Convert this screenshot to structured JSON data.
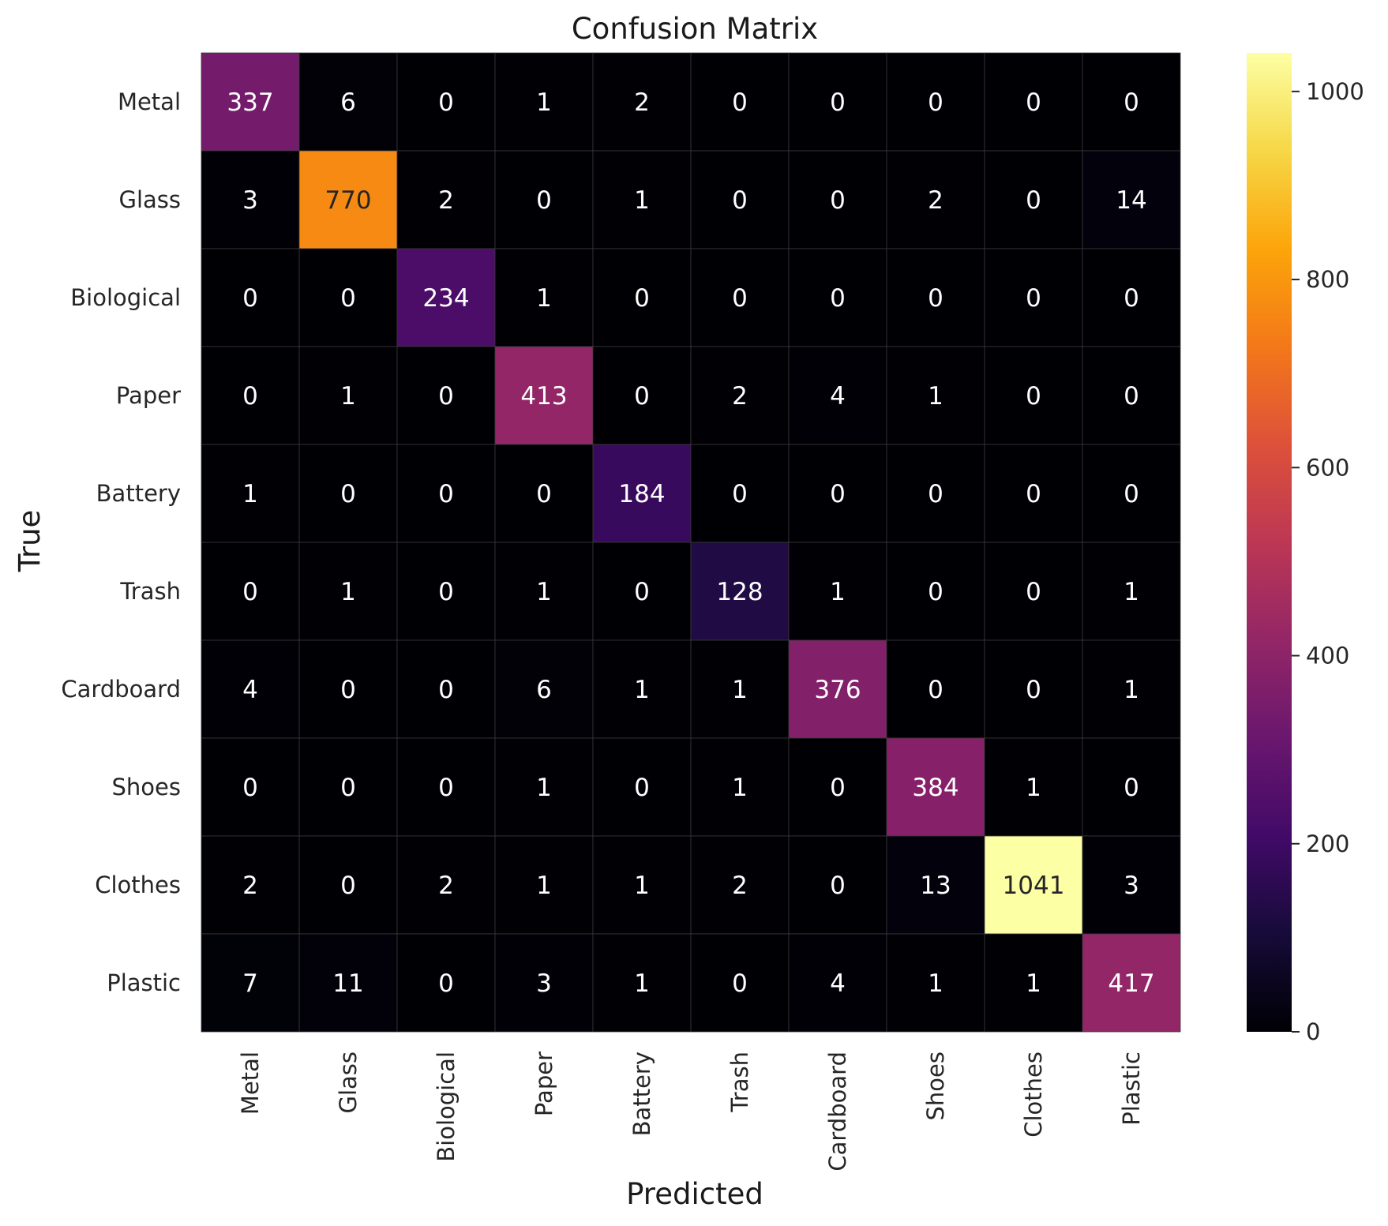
{
  "chart_data": {
    "type": "heatmap",
    "title": "Confusion Matrix",
    "xlabel": "Predicted",
    "ylabel": "True",
    "row_labels": [
      "Metal",
      "Glass",
      "Biological",
      "Paper",
      "Battery",
      "Trash",
      "Cardboard",
      "Shoes",
      "Clothes",
      "Plastic"
    ],
    "col_labels": [
      "Metal",
      "Glass",
      "Biological",
      "Paper",
      "Battery",
      "Trash",
      "Cardboard",
      "Shoes",
      "Clothes",
      "Plastic"
    ],
    "values": [
      [
        337,
        6,
        0,
        1,
        2,
        0,
        0,
        0,
        0,
        0
      ],
      [
        3,
        770,
        2,
        0,
        1,
        0,
        0,
        2,
        0,
        14
      ],
      [
        0,
        0,
        234,
        1,
        0,
        0,
        0,
        0,
        0,
        0
      ],
      [
        0,
        1,
        0,
        413,
        0,
        2,
        4,
        1,
        0,
        0
      ],
      [
        1,
        0,
        0,
        0,
        184,
        0,
        0,
        0,
        0,
        0
      ],
      [
        0,
        1,
        0,
        1,
        0,
        128,
        1,
        0,
        0,
        1
      ],
      [
        4,
        0,
        0,
        6,
        1,
        1,
        376,
        0,
        0,
        1
      ],
      [
        0,
        0,
        0,
        1,
        0,
        1,
        0,
        384,
        1,
        0
      ],
      [
        2,
        0,
        2,
        1,
        1,
        2,
        0,
        13,
        1041,
        3
      ],
      [
        7,
        11,
        0,
        3,
        1,
        0,
        4,
        1,
        1,
        417
      ]
    ],
    "colormap": "inferno",
    "colorbar": {
      "min": 0,
      "max": 1041,
      "ticks": [
        0,
        200,
        400,
        600,
        800,
        1000
      ]
    },
    "grid": true,
    "legend": "colorbar-right"
  }
}
